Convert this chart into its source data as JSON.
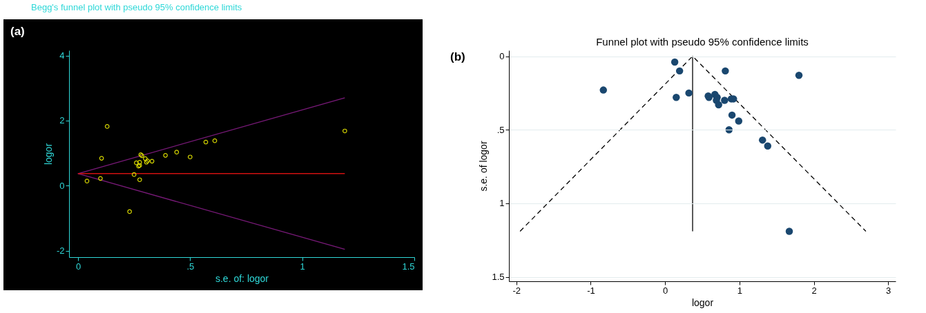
{
  "chart_data": [
    {
      "type": "scatter",
      "title": "Begg's funnel plot with pseudo 95% confidence limits",
      "xlabel": "s.e. of: logor",
      "ylabel": "logor",
      "annotations": [
        "(a)"
      ],
      "xlim": [
        -0.04,
        1.5
      ],
      "ylim": [
        -2.2,
        4.16
      ],
      "xticks": [
        0,
        {
          "value": 0.5,
          "label": ".5"
        },
        1,
        1.5
      ],
      "yticks": [
        -2,
        0,
        2,
        4
      ],
      "grid": false,
      "marker": "circle",
      "series": [
        {
          "type": "line",
          "color": "#7a1a7a",
          "marker": "none",
          "line_style": "solid",
          "x": [
            1.19,
            0,
            1.19
          ],
          "values": [
            2.7,
            0.37,
            -1.96
          ]
        },
        {
          "type": "line",
          "color": "#d01010",
          "marker": "none",
          "line_style": "solid",
          "x": [
            0,
            1.19
          ],
          "values": [
            0.37,
            0.37
          ]
        },
        {
          "color": "#d4d400",
          "x": [
            0.04,
            0.1,
            0.105,
            0.13,
            0.23,
            0.25,
            0.26,
            0.27,
            0.275,
            0.275,
            0.275,
            0.28,
            0.285,
            0.3,
            0.305,
            0.31,
            0.33,
            0.39,
            0.44,
            0.5,
            0.57,
            0.61,
            1.19
          ],
          "values": [
            0.14,
            0.22,
            0.84,
            1.82,
            -0.8,
            0.34,
            0.7,
            0.6,
            0.62,
            0.72,
            0.18,
            0.95,
            0.92,
            0.83,
            0.72,
            0.76,
            0.75,
            0.93,
            1.03,
            0.88,
            1.34,
            1.38,
            1.68
          ]
        }
      ]
    },
    {
      "type": "scatter",
      "title": "Funnel plot with pseudo 95% confidence limits",
      "xlabel": "logor",
      "ylabel": "s.e. of logor",
      "annotations": [
        "(b)"
      ],
      "xlim": [
        -2.1,
        3.1
      ],
      "ylim": [
        1.53,
        -0.04
      ],
      "xticks": [
        -2,
        -1,
        0,
        1,
        2,
        3
      ],
      "yticks": [
        0,
        {
          "value": 0.5,
          "label": ".5"
        },
        1,
        1.5
      ],
      "grid": "y",
      "marker": "circle",
      "series": [
        {
          "type": "line",
          "color": "#000000",
          "marker": "none",
          "line_style": "dashed",
          "x": [
            -1.95,
            0.37,
            2.7
          ],
          "values": [
            1.19,
            0,
            1.19
          ]
        },
        {
          "type": "line",
          "color": "#000000",
          "marker": "none",
          "line_style": "solid",
          "x": [
            0.37,
            0.37
          ],
          "values": [
            0,
            1.19
          ]
        },
        {
          "color": "#1a476f",
          "x": [
            0.13,
            0.195,
            -0.83,
            0.32,
            0.15,
            0.81,
            1.8,
            0.59,
            0.58,
            0.67,
            0.7,
            0.69,
            0.72,
            0.8,
            0.89,
            0.92,
            0.9,
            0.99,
            0.86,
            1.31,
            1.38,
            1.67
          ],
          "values": [
            0.04,
            0.1,
            0.23,
            0.25,
            0.28,
            0.1,
            0.13,
            0.28,
            0.27,
            0.26,
            0.28,
            0.3,
            0.33,
            0.3,
            0.29,
            0.29,
            0.4,
            0.44,
            0.5,
            0.57,
            0.61,
            1.19
          ]
        }
      ]
    }
  ]
}
